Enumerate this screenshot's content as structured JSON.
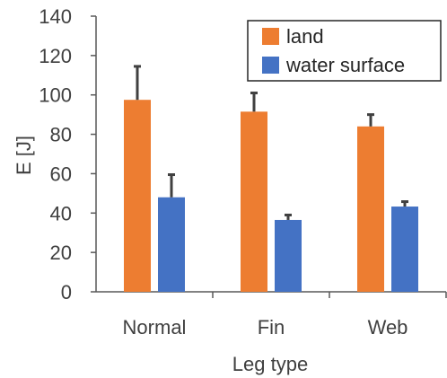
{
  "chart_data": {
    "type": "bar",
    "categories": [
      "Normal",
      "Fin",
      "Web"
    ],
    "series": [
      {
        "name": "land",
        "color": "#ED7D31",
        "values": [
          97.5,
          91.5,
          84
        ],
        "errors": [
          17,
          9.5,
          6
        ]
      },
      {
        "name": "water surface",
        "color": "#4472C4",
        "values": [
          48,
          36.5,
          43.3
        ],
        "errors": [
          11.5,
          2.5,
          2.5
        ]
      }
    ],
    "ylabel": "E [J]",
    "xlabel": "Leg type",
    "ylim": [
      0,
      140
    ],
    "yticks": [
      "0",
      "20",
      "40",
      "60",
      "80",
      "100",
      "120",
      "140"
    ],
    "ytick_values": [
      0,
      20,
      40,
      60,
      80,
      100,
      120,
      140
    ],
    "grid": false,
    "legend_position": "top-right",
    "error_bar_color": "#404040",
    "axis_color": "#595959"
  }
}
